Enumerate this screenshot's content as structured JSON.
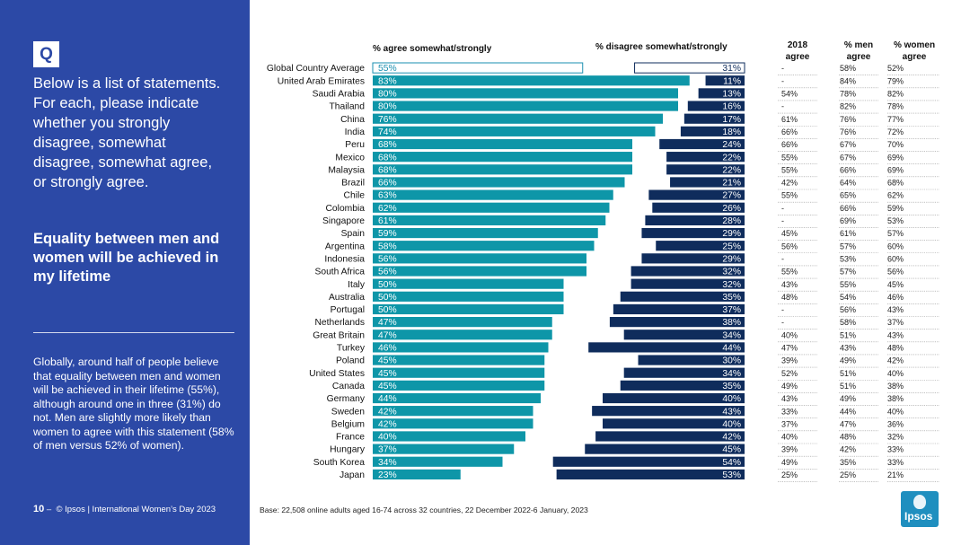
{
  "question_badge": "Q",
  "question_text": "Below is a list of statements. For each, please indicate whether you strongly disagree, somewhat disagree, somewhat agree, or strongly agree.",
  "statement": "Equality between men and women will be achieved in my lifetime",
  "summary": "Globally, around half of people believe that equality between men and women will be achieved in their lifetime (55%), although around one in three (31%) do not. Men are slightly more likely than women to agree with this statement (58% of men versus 52% of women).",
  "footer": {
    "page_number": "10",
    "separator": "–",
    "text": "© Ipsos | International Women’s Day 2023"
  },
  "base_note": "Base: 22,508 online adults aged 16-74 across 32 countries, 22 December 2022-6 January, 2023",
  "logo_text": "Ipsos",
  "colors": {
    "panel": "#2c49a6",
    "agree": "#0e96a8",
    "disagree": "#0f2c5c",
    "global_outline": "#1a8fb0"
  },
  "chart_data": {
    "type": "bar",
    "agree_header": "% agree somewhat/strongly",
    "disagree_header": "% disagree somewhat/strongly",
    "col_2018_header": "2018 agree",
    "col_men_header": "% men agree",
    "col_women_header": "% women agree",
    "value_suffix": "%",
    "categories": [
      "Global Country Average",
      "United Arab Emirates",
      "Saudi Arabia",
      "Thailand",
      "China",
      "India",
      "Peru",
      "Mexico",
      "Malaysia",
      "Brazil",
      "Chile",
      "Colombia",
      "Singapore",
      "Spain",
      "Argentina",
      "Indonesia",
      "South Africa",
      "Italy",
      "Australia",
      "Portugal",
      "Netherlands",
      "Great Britain",
      "Turkey",
      "Poland",
      "United States",
      "Canada",
      "Germany",
      "Sweden",
      "Belgium",
      "France",
      "Hungary",
      "South Korea",
      "Japan"
    ],
    "series": [
      {
        "name": "% agree somewhat/strongly",
        "values": [
          55,
          83,
          80,
          80,
          76,
          74,
          68,
          68,
          68,
          66,
          63,
          62,
          61,
          59,
          58,
          56,
          56,
          50,
          50,
          50,
          47,
          47,
          46,
          45,
          45,
          45,
          44,
          42,
          42,
          40,
          37,
          34,
          23
        ]
      },
      {
        "name": "% disagree somewhat/strongly",
        "values": [
          31,
          11,
          13,
          16,
          17,
          18,
          24,
          22,
          22,
          21,
          27,
          26,
          28,
          29,
          25,
          29,
          32,
          32,
          35,
          37,
          38,
          34,
          44,
          30,
          34,
          35,
          40,
          43,
          40,
          42,
          45,
          54,
          53
        ]
      }
    ],
    "agree_2018": [
      "-",
      "-",
      "54%",
      "-",
      "61%",
      "66%",
      "66%",
      "55%",
      "55%",
      "42%",
      "55%",
      "-",
      "-",
      "45%",
      "56%",
      "-",
      "55%",
      "43%",
      "48%",
      "-",
      "-",
      "40%",
      "47%",
      "39%",
      "52%",
      "49%",
      "43%",
      "33%",
      "37%",
      "40%",
      "39%",
      "49%",
      "25%"
    ],
    "men_agree": [
      "58%",
      "84%",
      "78%",
      "82%",
      "76%",
      "76%",
      "67%",
      "67%",
      "66%",
      "64%",
      "65%",
      "66%",
      "69%",
      "61%",
      "57%",
      "53%",
      "57%",
      "55%",
      "54%",
      "56%",
      "58%",
      "51%",
      "43%",
      "49%",
      "51%",
      "51%",
      "49%",
      "44%",
      "47%",
      "48%",
      "42%",
      "35%",
      "25%"
    ],
    "women_agree": [
      "52%",
      "79%",
      "82%",
      "78%",
      "77%",
      "72%",
      "70%",
      "69%",
      "69%",
      "68%",
      "62%",
      "59%",
      "53%",
      "57%",
      "60%",
      "60%",
      "56%",
      "45%",
      "46%",
      "43%",
      "37%",
      "43%",
      "48%",
      "42%",
      "40%",
      "38%",
      "38%",
      "40%",
      "36%",
      "32%",
      "33%",
      "33%",
      "21%"
    ]
  }
}
